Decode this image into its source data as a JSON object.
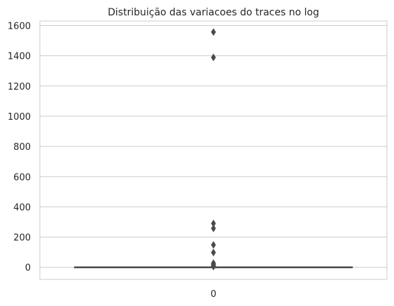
{
  "chart_data": {
    "type": "box",
    "title": "Distribuição das variacoes do traces no log",
    "xlabel": "",
    "ylabel": "",
    "categories": [
      "0"
    ],
    "ylim": [
      -80,
      1630
    ],
    "yticks": [
      0,
      200,
      400,
      600,
      800,
      1000,
      1200,
      1400,
      1600
    ],
    "grid": true,
    "series": [
      {
        "category": "0",
        "box": {
          "whisker_low": 1,
          "q1": 1,
          "median": 1,
          "q3": 2,
          "whisker_high": 3
        },
        "outliers": [
          1557,
          1389,
          290,
          258,
          148,
          98,
          28,
          22,
          16,
          12,
          8,
          6,
          5
        ]
      }
    ],
    "colors": {
      "box_line": "#4a4a4a",
      "outlier": "#4a4a4a",
      "grid": "#cccccc",
      "frame": "#cccccc"
    }
  }
}
